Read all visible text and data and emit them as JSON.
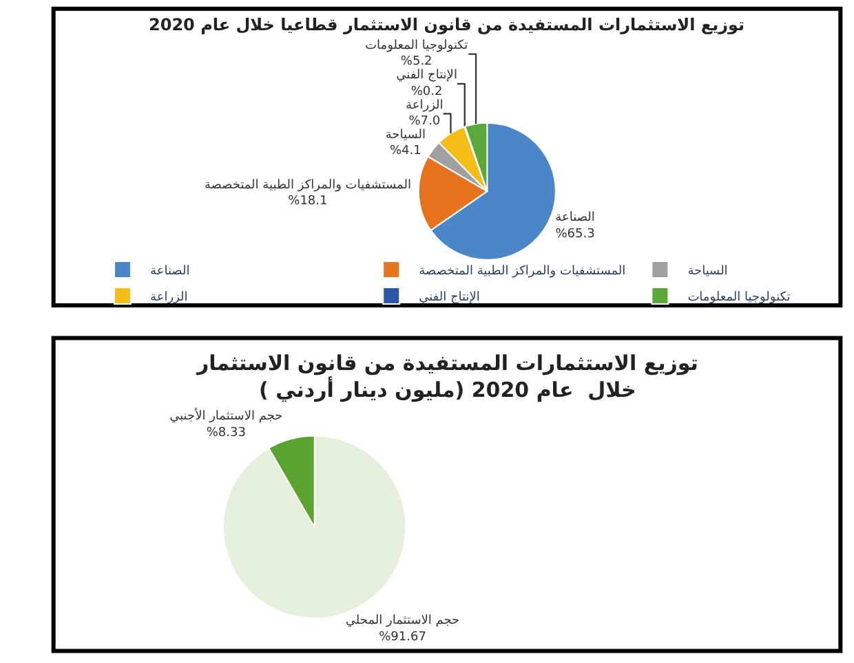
{
  "chart_data": [
    {
      "type": "pie",
      "title": "توزيع الاستثمارات المستفيدة من قانون الاستثمار قطاعيا خلال عام 2020",
      "categories": [
        "الصناعة",
        "المستشفيات والمراكز الطبية المتخصصة",
        "السياحة",
        "الزراعة",
        "الإنتاج الفني",
        "تكنولوجيا المعلومات"
      ],
      "values": [
        65.3,
        18.1,
        4.1,
        7.0,
        0.2,
        5.2
      ],
      "value_labels": [
        "%65.3",
        "%18.1",
        "%4.1",
        "%7.0",
        "%0.2",
        "%5.2"
      ],
      "colors": [
        "#4a86c8",
        "#e8731f",
        "#a0a0a0",
        "#f5bd18",
        "#2e56a8",
        "#5aa83a"
      ],
      "legend": "bottom"
    },
    {
      "type": "pie",
      "title": "توزيع الاستثمارات المستفيدة من قانون الاستثمار\nخلال  عام 2020 (مليون دينار أردني )",
      "categories": [
        "حجم الاستثمار المحلي",
        "حجم الاستثمار الأجنبي"
      ],
      "values": [
        91.67,
        8.33
      ],
      "value_labels": [
        "%91.67",
        "%8.33"
      ],
      "colors": [
        "#e4f0dc",
        "#5aa32e"
      ]
    }
  ]
}
